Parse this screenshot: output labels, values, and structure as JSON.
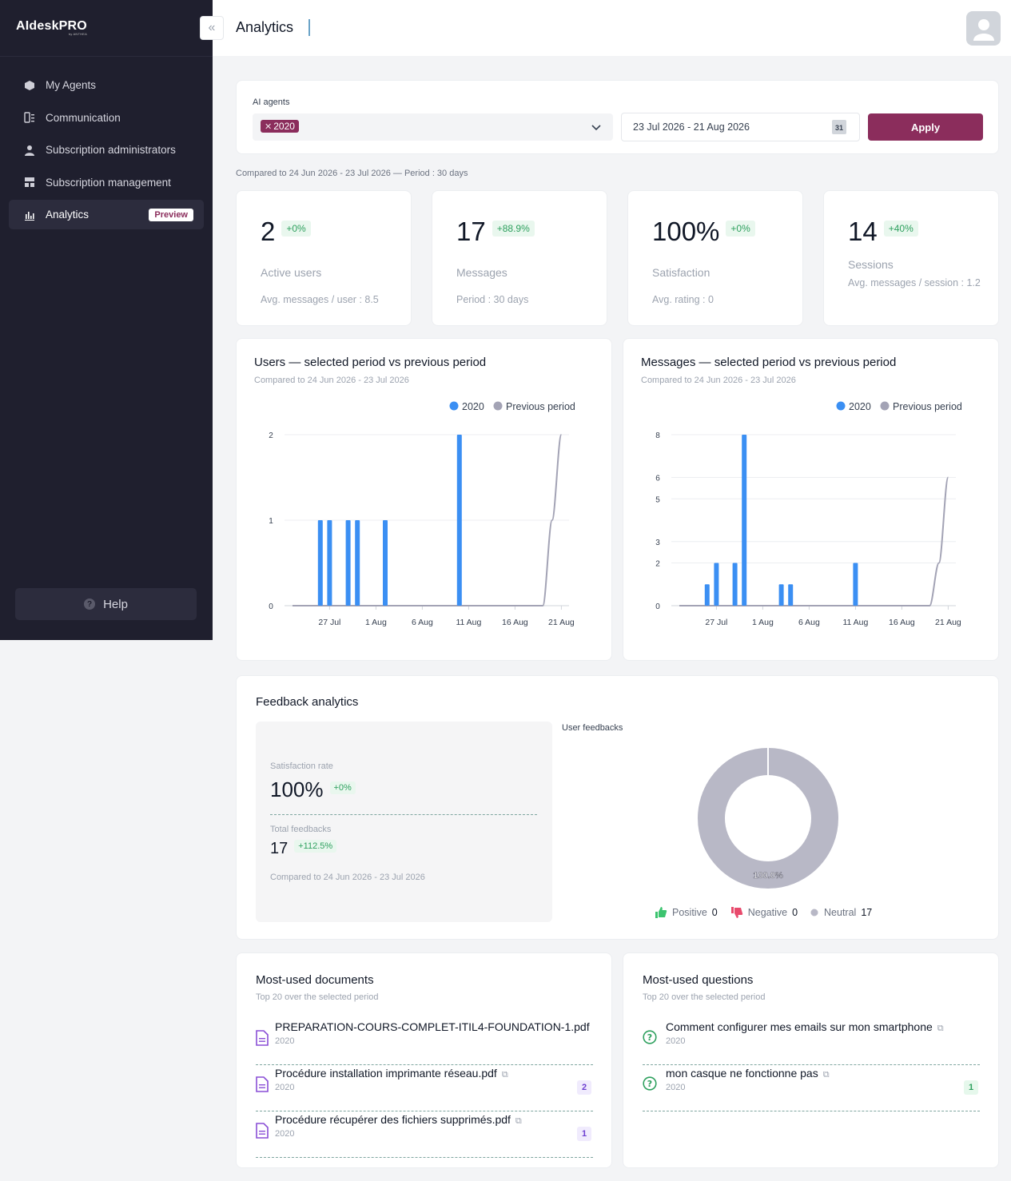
{
  "app": {
    "logo": "AIdeskPRO",
    "logo_tag": "by ANTHEA"
  },
  "sidebar": {
    "items": [
      {
        "label": "My Agents",
        "icon": "agents-icon"
      },
      {
        "label": "Communication",
        "icon": "communication-icon"
      },
      {
        "label": "Subscription administrators",
        "icon": "user-icon"
      },
      {
        "label": "Subscription management",
        "icon": "management-icon"
      },
      {
        "label": "Analytics",
        "icon": "chart-icon",
        "badge": "Preview",
        "active": true
      }
    ],
    "help": "Help"
  },
  "header": {
    "title": "Analytics"
  },
  "filters": {
    "agents_label": "AI agents",
    "selected_agent": "2020",
    "date_range": "23 Jul 2026 - 21 Aug 2026",
    "calendar_day": "31",
    "apply": "Apply"
  },
  "compared_text": "Compared to 24 Jun 2026 - 23 Jul 2026 — Period : 30 days",
  "kpis": [
    {
      "value": "2",
      "delta": "+0%",
      "label": "Active users",
      "sub": "Avg. messages / user : 8.5"
    },
    {
      "value": "17",
      "delta": "+88.9%",
      "label": "Messages",
      "sub": "Period : 30 days"
    },
    {
      "value": "100%",
      "delta": "+0%",
      "label": "Satisfaction",
      "sub": "Avg. rating : 0"
    },
    {
      "value": "14",
      "delta": "+40%",
      "label": "Sessions",
      "sub": "Avg. messages / session : 1.2"
    }
  ],
  "chart_data": [
    {
      "type": "bar",
      "title": "Users — selected period vs previous period",
      "subtitle": "Compared to 24 Jun 2026 - 23 Jul 2026",
      "x_ticks": [
        "27 Jul",
        "1 Aug",
        "6 Aug",
        "11 Aug",
        "16 Aug",
        "21 Aug"
      ],
      "y_ticks": [
        0,
        1,
        2
      ],
      "ylim": [
        0,
        2
      ],
      "legend": [
        "2020",
        "Previous period"
      ],
      "series": [
        {
          "name": "2020",
          "type": "bar",
          "values": [
            {
              "day": "26 Jul",
              "value": 1
            },
            {
              "day": "27 Jul",
              "value": 1
            },
            {
              "day": "29 Jul",
              "value": 1
            },
            {
              "day": "30 Jul",
              "value": 1
            },
            {
              "day": "2 Aug",
              "value": 1
            },
            {
              "day": "10 Aug",
              "value": 2
            }
          ]
        },
        {
          "name": "Previous period",
          "type": "line",
          "values": [
            {
              "day": "23 Jul",
              "value": 0
            },
            {
              "day": "19 Aug",
              "value": 0
            },
            {
              "day": "20 Aug",
              "value": 1
            },
            {
              "day": "21 Aug",
              "value": 2
            }
          ]
        }
      ],
      "colors": {
        "current": "#3b8ff3",
        "previous": "#a3a3b5"
      }
    },
    {
      "type": "bar",
      "title": "Messages — selected period vs previous period",
      "subtitle": "Compared to 24 Jun 2026 - 23 Jul 2026",
      "x_ticks": [
        "27 Jul",
        "1 Aug",
        "6 Aug",
        "11 Aug",
        "16 Aug",
        "21 Aug"
      ],
      "y_ticks": [
        0,
        2,
        3,
        5,
        6,
        8
      ],
      "ylim": [
        0,
        8
      ],
      "legend": [
        "2020",
        "Previous period"
      ],
      "series": [
        {
          "name": "2020",
          "type": "bar",
          "values": [
            {
              "day": "26 Jul",
              "value": 1
            },
            {
              "day": "27 Jul",
              "value": 2
            },
            {
              "day": "29 Jul",
              "value": 2
            },
            {
              "day": "30 Jul",
              "value": 8
            },
            {
              "day": "3 Aug",
              "value": 1
            },
            {
              "day": "4 Aug",
              "value": 1
            },
            {
              "day": "11 Aug",
              "value": 2
            }
          ]
        },
        {
          "name": "Previous period",
          "type": "line",
          "values": [
            {
              "day": "23 Jul",
              "value": 0
            },
            {
              "day": "19 Aug",
              "value": 0
            },
            {
              "day": "20 Aug",
              "value": 2
            },
            {
              "day": "21 Aug",
              "value": 6
            }
          ]
        }
      ],
      "colors": {
        "current": "#3b8ff3",
        "previous": "#a3a3b5"
      }
    },
    {
      "type": "pie",
      "title": "User feedbacks",
      "slices": [
        {
          "label": "Positive",
          "value": 0,
          "color": "#3cc46f"
        },
        {
          "label": "Negative",
          "value": 0,
          "color": "#e84a6c"
        },
        {
          "label": "Neutral",
          "value": 17,
          "color": "#b8b8c6"
        }
      ],
      "center_label": "100.0%"
    }
  ],
  "feedback": {
    "title": "Feedback analytics",
    "sat_label": "Satisfaction rate",
    "sat_value": "100%",
    "sat_delta": "+0%",
    "total_label": "Total feedbacks",
    "total_value": "17",
    "total_delta": "+112.5%",
    "compared": "Compared to 24 Jun 2026 - 23 Jul 2026",
    "uf_label": "User feedbacks",
    "legend": [
      {
        "label": "Positive",
        "count": "0"
      },
      {
        "label": "Negative",
        "count": "0"
      },
      {
        "label": "Neutral",
        "count": "17"
      }
    ]
  },
  "documents": {
    "title": "Most-used documents",
    "subtitle": "Top 20 over the selected period",
    "items": [
      {
        "name": "PREPARATION-COURS-COMPLET-ITIL4-FOUNDATION-1.pdf",
        "agent": "2020",
        "count": ""
      },
      {
        "name": "Procédure installation imprimante réseau.pdf",
        "agent": "2020",
        "count": "2"
      },
      {
        "name": "Procédure récupérer des fichiers supprimés.pdf",
        "agent": "2020",
        "count": "1"
      }
    ]
  },
  "questions": {
    "title": "Most-used questions",
    "subtitle": "Top 20 over the selected period",
    "items": [
      {
        "name": "Comment configurer mes emails sur mon smartphone",
        "agent": "2020",
        "count": ""
      },
      {
        "name": "mon casque ne fonctionne pas",
        "agent": "2020",
        "count": "1"
      }
    ]
  }
}
